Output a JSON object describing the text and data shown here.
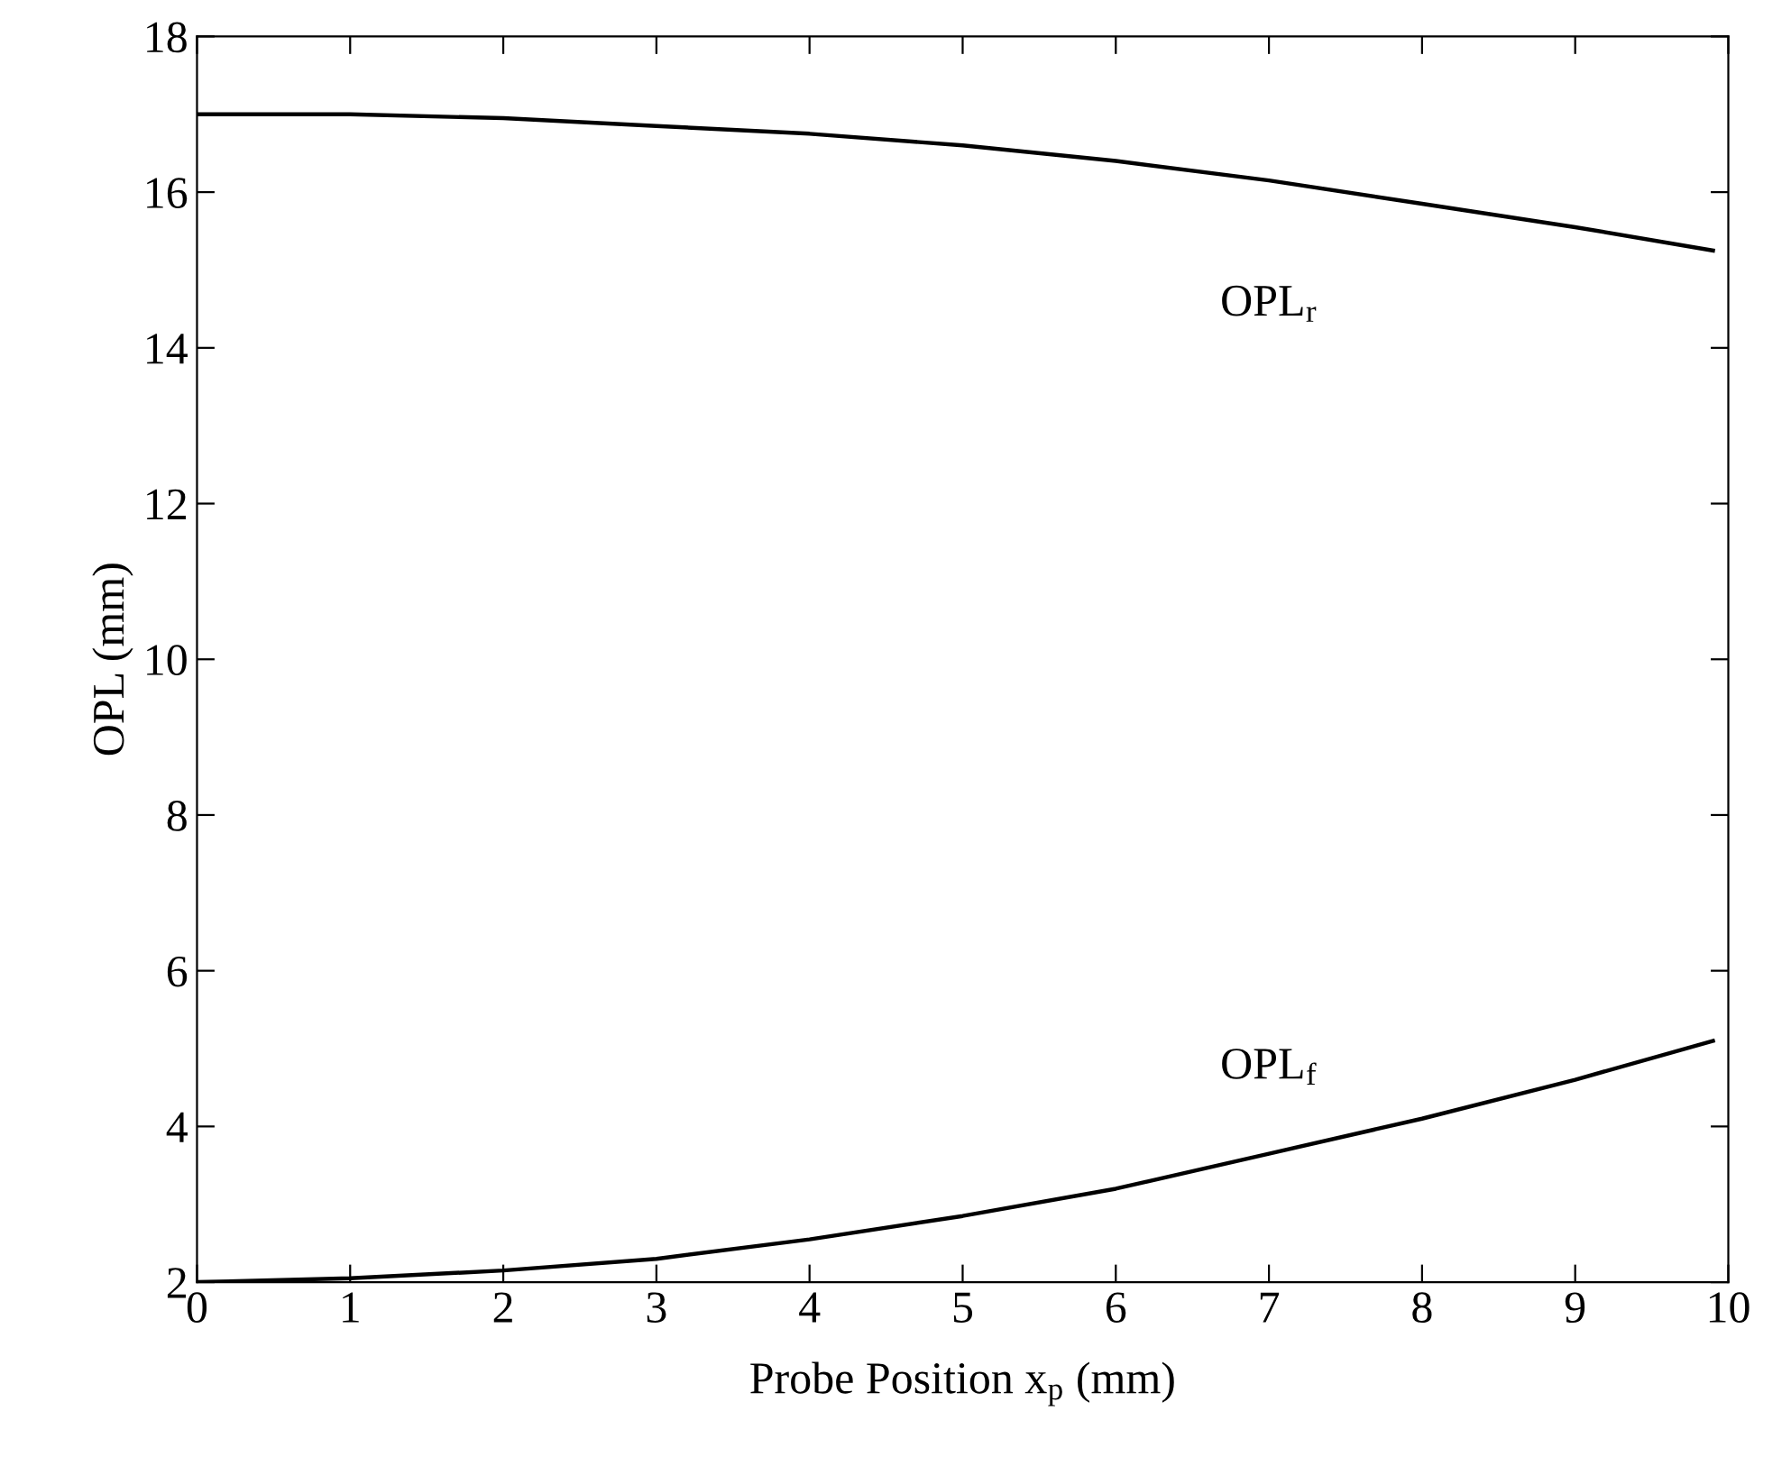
{
  "chart_data": {
    "type": "line",
    "xlabel": "Probe Position x$_{p}$ (mm)",
    "ylabel": "OPL (mm)",
    "xlim": [
      0,
      10
    ],
    "xticks": [
      0,
      1,
      2,
      3,
      4,
      5,
      6,
      7,
      8,
      9,
      10
    ],
    "ylim": [
      2,
      18
    ],
    "yticks": [
      2,
      4,
      6,
      8,
      10,
      12,
      14,
      16,
      18
    ],
    "grid": false,
    "legend": false,
    "marker": "none",
    "line_style": "solid",
    "series": [
      {
        "name": "OPL$_{r}$",
        "color": "#000000",
        "x": [
          0,
          1,
          2,
          3,
          4,
          5,
          6,
          7,
          8,
          9,
          9.9
        ],
        "values": [
          17.0,
          17.0,
          16.95,
          16.85,
          16.75,
          16.6,
          16.4,
          16.15,
          15.85,
          15.55,
          15.25
        ]
      },
      {
        "name": "OPL$_{f}$",
        "color": "#000000",
        "x": [
          0,
          1,
          2,
          3,
          4,
          5,
          6,
          7,
          8,
          9,
          9.9
        ],
        "values": [
          2.0,
          2.05,
          2.15,
          2.3,
          2.55,
          2.85,
          3.2,
          3.65,
          4.1,
          4.6,
          5.1
        ]
      }
    ]
  }
}
